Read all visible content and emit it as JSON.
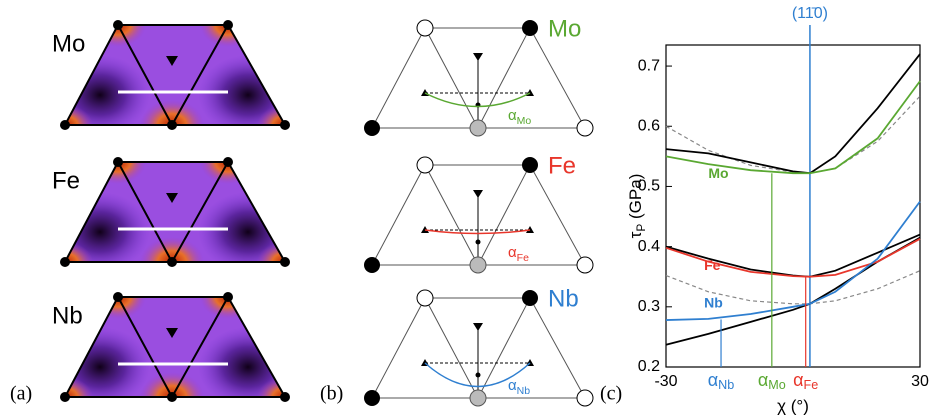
{
  "panel_a": {
    "label": "(a)",
    "rows": [
      "Mo",
      "Fe",
      "Nb"
    ]
  },
  "panel_b": {
    "label": "(b)",
    "rows": [
      {
        "element": "Mo",
        "color": "#5aa832",
        "alpha": {
          "symbol": "α",
          "sub": "Mo"
        }
      },
      {
        "element": "Fe",
        "color": "#e8362b",
        "alpha": {
          "symbol": "α",
          "sub": "Fe"
        }
      },
      {
        "element": "Nb",
        "color": "#2f7fd0",
        "alpha": {
          "symbol": "α",
          "sub": "Nb"
        }
      }
    ]
  },
  "chart_data": {
    "type": "line",
    "panel_label": "(c)",
    "top_label": "(11̄0)",
    "top_value": 4,
    "top_color": "#2f7fd0",
    "xlabel": "χ (°)",
    "ylabel": {
      "symbol": "τ",
      "sub": "P",
      "unit": " (GPa)"
    },
    "x": [
      -30,
      -20,
      -10,
      0,
      4,
      10,
      20,
      30
    ],
    "xlim": [
      -30,
      30
    ],
    "xticks": [
      -30,
      30
    ],
    "ylim": [
      0.2,
      0.735
    ],
    "yticks": [
      0.2,
      0.3,
      0.4,
      0.5,
      0.6,
      0.7
    ],
    "series": [
      {
        "color": "#888888",
        "dash": true,
        "values": [
          0.6,
          0.56,
          0.535,
          0.524,
          0.522,
          0.53,
          0.575,
          0.65
        ]
      },
      {
        "color": "#888888",
        "dash": true,
        "values": [
          0.352,
          0.325,
          0.31,
          0.305,
          0.305,
          0.31,
          0.33,
          0.36
        ]
      },
      {
        "color": "#000000",
        "dash": false,
        "values": [
          0.562,
          0.555,
          0.54,
          0.525,
          0.522,
          0.55,
          0.63,
          0.72
        ]
      },
      {
        "color": "#000000",
        "dash": false,
        "values": [
          0.237,
          0.255,
          0.275,
          0.295,
          0.305,
          0.33,
          0.375,
          0.415
        ]
      },
      {
        "color": "#000000",
        "dash": false,
        "values": [
          0.4,
          0.38,
          0.362,
          0.352,
          0.35,
          0.36,
          0.39,
          0.42
        ]
      },
      {
        "name": "Mo",
        "color": "#5aa832",
        "dash": false,
        "values": [
          0.55,
          0.537,
          0.527,
          0.522,
          0.522,
          0.53,
          0.58,
          0.675
        ],
        "label_at": [
          -20,
          0.52
        ]
      },
      {
        "name": "Fe",
        "color": "#e8362b",
        "dash": false,
        "values": [
          0.398,
          0.375,
          0.358,
          0.351,
          0.35,
          0.353,
          0.375,
          0.413
        ],
        "label_at": [
          -21,
          0.367
        ]
      },
      {
        "name": "Nb",
        "color": "#2f7fd0",
        "dash": false,
        "values": [
          0.278,
          0.28,
          0.288,
          0.3,
          0.305,
          0.325,
          0.38,
          0.475
        ],
        "label_at": [
          -21,
          0.305
        ]
      }
    ],
    "markers": [
      {
        "x": -17,
        "y": 0.279,
        "color": "#2f7fd0",
        "label": {
          "symbol": "α",
          "sub": "Nb"
        }
      },
      {
        "x": -5,
        "y": 0.522,
        "color": "#5aa832",
        "label": {
          "symbol": "α",
          "sub": "Mo"
        }
      },
      {
        "x": 3,
        "y": 0.35,
        "color": "#e8362b",
        "label": {
          "symbol": "α",
          "sub": "Fe"
        }
      }
    ]
  }
}
